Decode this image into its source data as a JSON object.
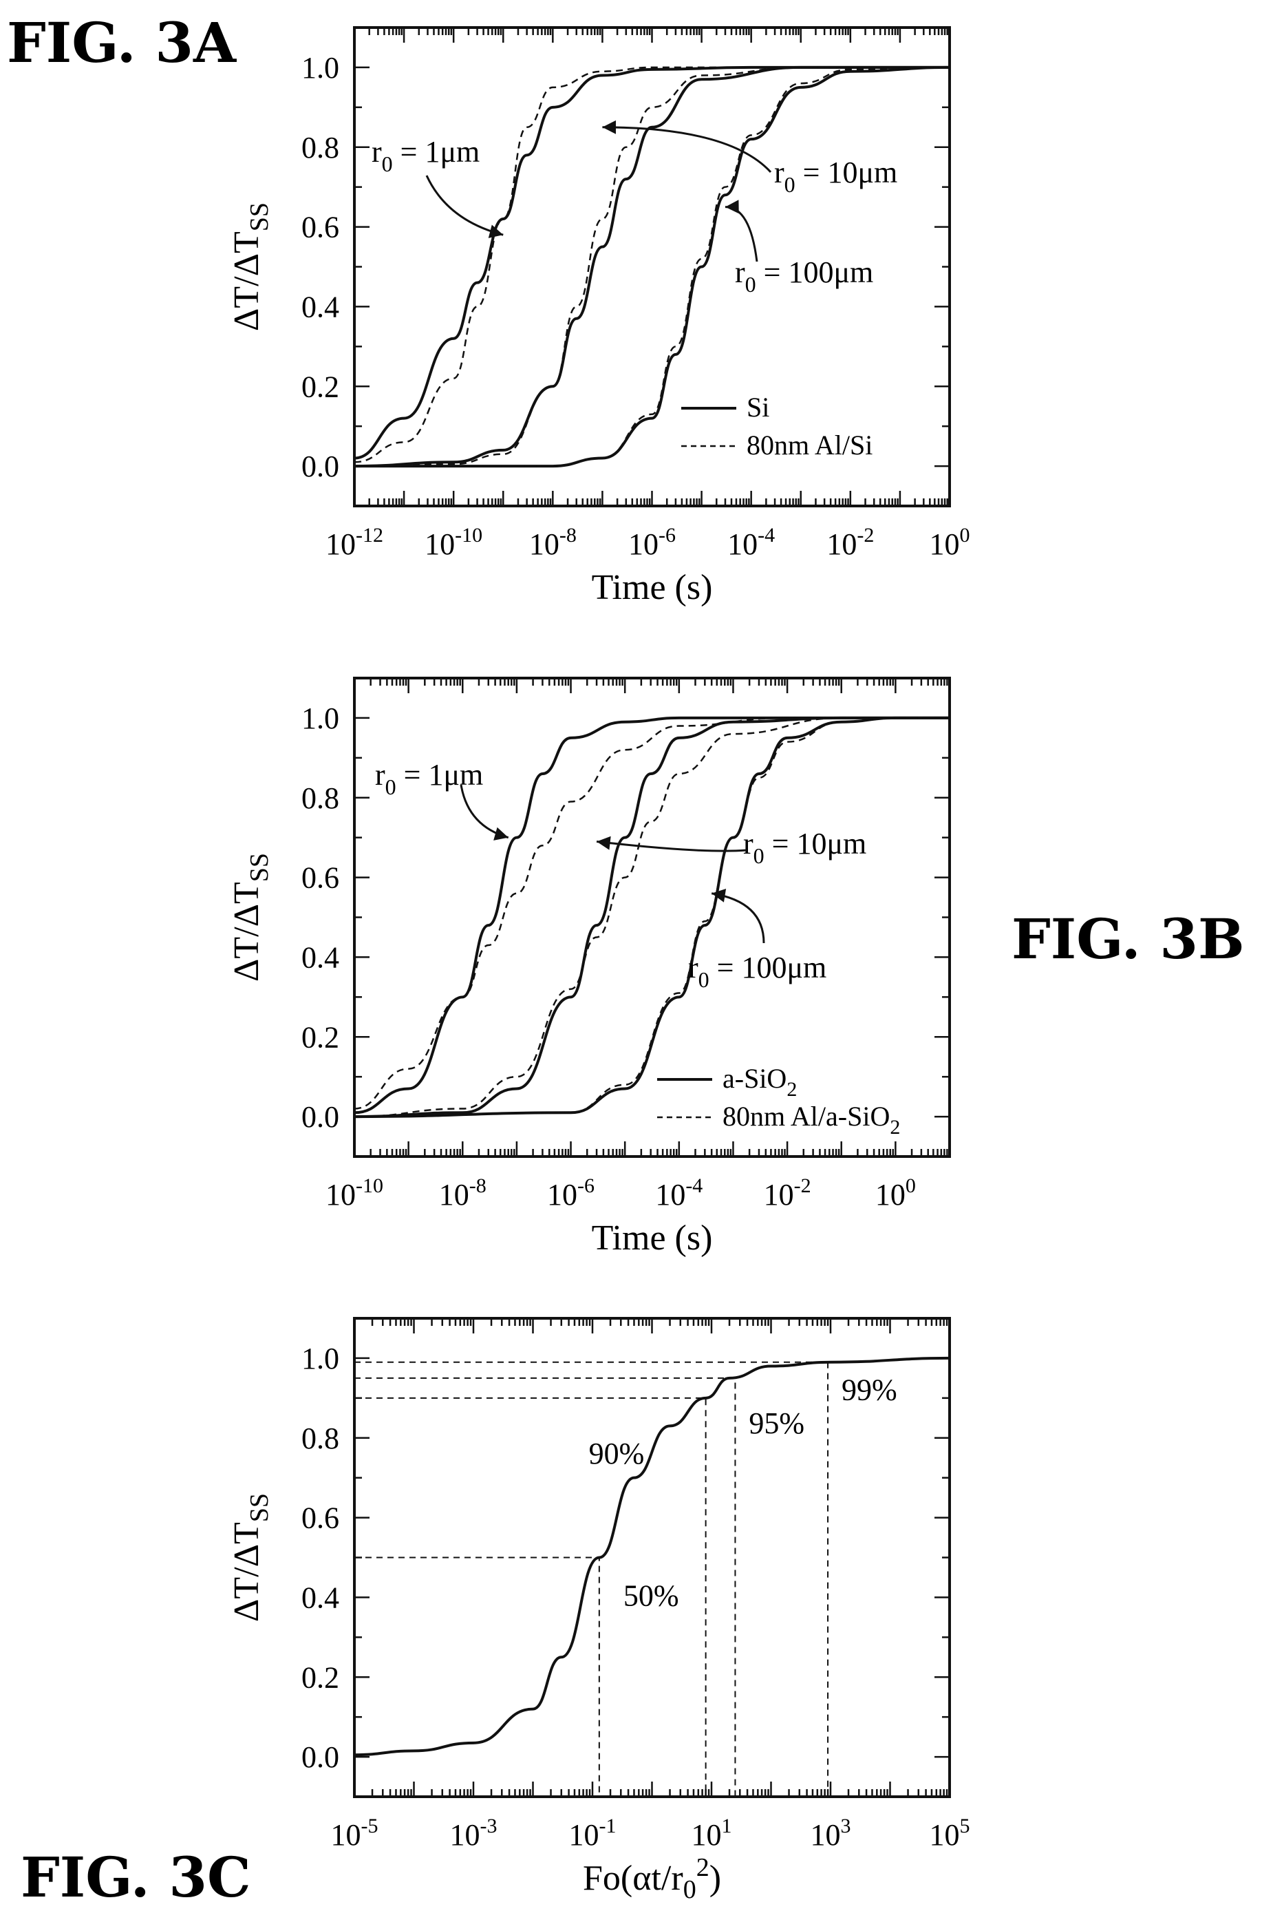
{
  "figures": {
    "3A": {
      "label": "FIG. 3A"
    },
    "3B": {
      "label": "FIG. 3B"
    },
    "3C": {
      "label": "FIG. 3C"
    }
  },
  "chart_data": [
    {
      "id": "3A",
      "type": "line",
      "title": "",
      "xlabel": "Time (s)",
      "ylabel_main": "ΔT/ΔT",
      "ylabel_sub": "SS",
      "xscale": "log",
      "xlim": [
        1e-12,
        1
      ],
      "ylim": [
        -0.1,
        1.1
      ],
      "grid": false,
      "legend_position": "bottom-right",
      "x_ticks": [
        {
          "value": 1e-12,
          "base": "10",
          "exp": "-12"
        },
        {
          "value": 1e-10,
          "base": "10",
          "exp": "-10"
        },
        {
          "value": 1e-08,
          "base": "10",
          "exp": "-8"
        },
        {
          "value": 1e-06,
          "base": "10",
          "exp": "-6"
        },
        {
          "value": 0.0001,
          "base": "10",
          "exp": "-4"
        },
        {
          "value": 0.01,
          "base": "10",
          "exp": "-2"
        },
        {
          "value": 1,
          "base": "10",
          "exp": "0"
        }
      ],
      "y_ticks": [
        "0.0",
        "0.2",
        "0.4",
        "0.6",
        "0.8",
        "1.0"
      ],
      "legend": [
        {
          "style": "solid",
          "label": "Si"
        },
        {
          "style": "dashed",
          "label": "80nm Al/Si"
        }
      ],
      "series": [
        {
          "style": "solid",
          "group": "r0 = 1μm",
          "x": [
            1e-12,
            1e-11,
            1e-10,
            3e-10,
            1e-09,
            3e-09,
            1e-08,
            1e-07,
            1e-06,
            0.0001,
            1
          ],
          "y": [
            0.02,
            0.12,
            0.32,
            0.46,
            0.62,
            0.78,
            0.9,
            0.98,
            0.995,
            1.0,
            1.0
          ]
        },
        {
          "style": "dashed",
          "group": "r0 = 1μm",
          "x": [
            1e-12,
            1e-11,
            1e-10,
            3e-10,
            1e-09,
            3e-09,
            1e-08,
            1e-07,
            1e-06,
            0.0001,
            1
          ],
          "y": [
            0.01,
            0.06,
            0.22,
            0.4,
            0.62,
            0.85,
            0.95,
            0.99,
            1.0,
            1.0,
            1.0
          ]
        },
        {
          "style": "solid",
          "group": "r0 = 10μm",
          "x": [
            1e-12,
            1e-10,
            1e-09,
            1e-08,
            3e-08,
            1e-07,
            3e-07,
            1e-06,
            1e-05,
            0.001,
            1
          ],
          "y": [
            0.0,
            0.01,
            0.04,
            0.2,
            0.37,
            0.55,
            0.72,
            0.85,
            0.97,
            1.0,
            1.0
          ]
        },
        {
          "style": "dashed",
          "group": "r0 = 10μm",
          "x": [
            1e-12,
            1e-10,
            1e-09,
            1e-08,
            3e-08,
            1e-07,
            3e-07,
            1e-06,
            1e-05,
            0.001,
            1
          ],
          "y": [
            0.0,
            0.005,
            0.03,
            0.2,
            0.4,
            0.62,
            0.8,
            0.9,
            0.98,
            1.0,
            1.0
          ]
        },
        {
          "style": "solid",
          "group": "r0 = 100μm",
          "x": [
            1e-12,
            1e-08,
            1e-07,
            1e-06,
            3e-06,
            1e-05,
            3e-05,
            0.0001,
            0.001,
            0.01,
            1
          ],
          "y": [
            0.0,
            0.0,
            0.02,
            0.12,
            0.28,
            0.5,
            0.68,
            0.82,
            0.95,
            0.99,
            1.0
          ]
        },
        {
          "style": "dashed",
          "group": "r0 = 100μm",
          "x": [
            1e-12,
            1e-08,
            1e-07,
            1e-06,
            3e-06,
            1e-05,
            3e-05,
            0.0001,
            0.001,
            0.01,
            1
          ],
          "y": [
            0.0,
            0.0,
            0.02,
            0.13,
            0.3,
            0.52,
            0.7,
            0.83,
            0.96,
            0.995,
            1.0
          ]
        }
      ],
      "annotations": [
        {
          "main": "r",
          "sub": "0",
          "rest": " = 1μm",
          "point_x": 1e-09,
          "point_y": 0.58
        },
        {
          "main": "r",
          "sub": "0",
          "rest": " = 10μm",
          "point_x": 1e-07,
          "point_y": 0.85
        },
        {
          "main": "r",
          "sub": "0",
          "rest": " = 100μm",
          "point_x": 3e-05,
          "point_y": 0.65
        }
      ]
    },
    {
      "id": "3B",
      "type": "line",
      "title": "",
      "xlabel": "Time (s)",
      "ylabel_main": "ΔT/ΔT",
      "ylabel_sub": "SS",
      "xscale": "log",
      "xlim": [
        1e-10,
        10
      ],
      "ylim": [
        -0.1,
        1.1
      ],
      "grid": false,
      "legend_position": "bottom-right",
      "x_ticks": [
        {
          "value": 1e-10,
          "base": "10",
          "exp": "-10"
        },
        {
          "value": 1e-08,
          "base": "10",
          "exp": "-8"
        },
        {
          "value": 1e-06,
          "base": "10",
          "exp": "-6"
        },
        {
          "value": 0.0001,
          "base": "10",
          "exp": "-4"
        },
        {
          "value": 0.01,
          "base": "10",
          "exp": "-2"
        },
        {
          "value": 1,
          "base": "10",
          "exp": "0"
        }
      ],
      "y_ticks": [
        "0.0",
        "0.2",
        "0.4",
        "0.6",
        "0.8",
        "1.0"
      ],
      "legend": [
        {
          "style": "solid",
          "label_main": "a-SiO",
          "label_sub": "2"
        },
        {
          "style": "dashed",
          "label_main": "80nm Al/a-SiO",
          "label_sub": "2"
        }
      ],
      "series": [
        {
          "style": "solid",
          "group": "r0 = 1μm",
          "x": [
            1e-10,
            1e-09,
            1e-08,
            3e-08,
            1e-07,
            3e-07,
            1e-06,
            1e-05,
            0.0001,
            0.01,
            10
          ],
          "y": [
            0.01,
            0.07,
            0.3,
            0.48,
            0.7,
            0.86,
            0.95,
            0.99,
            1.0,
            1.0,
            1.0
          ]
        },
        {
          "style": "dashed",
          "group": "r0 = 1μm",
          "x": [
            1e-10,
            1e-09,
            1e-08,
            3e-08,
            1e-07,
            3e-07,
            1e-06,
            1e-05,
            0.0001,
            0.01,
            10
          ],
          "y": [
            0.02,
            0.12,
            0.3,
            0.43,
            0.56,
            0.68,
            0.79,
            0.92,
            0.98,
            1.0,
            1.0
          ]
        },
        {
          "style": "solid",
          "group": "r0 = 10μm",
          "x": [
            1e-10,
            1e-08,
            1e-07,
            1e-06,
            3e-06,
            1e-05,
            3e-05,
            0.0001,
            0.001,
            0.1,
            10
          ],
          "y": [
            0.0,
            0.01,
            0.07,
            0.3,
            0.48,
            0.7,
            0.86,
            0.95,
            0.99,
            1.0,
            1.0
          ]
        },
        {
          "style": "dashed",
          "group": "r0 = 10μm",
          "x": [
            1e-10,
            1e-08,
            1e-07,
            1e-06,
            3e-06,
            1e-05,
            3e-05,
            0.0001,
            0.001,
            0.1,
            10
          ],
          "y": [
            0.0,
            0.02,
            0.1,
            0.32,
            0.45,
            0.6,
            0.74,
            0.86,
            0.96,
            1.0,
            1.0
          ]
        },
        {
          "style": "solid",
          "group": "r0 = 100μm",
          "x": [
            1e-10,
            1e-06,
            1e-05,
            0.0001,
            0.0003,
            0.001,
            0.003,
            0.01,
            0.1,
            1,
            10
          ],
          "y": [
            0.0,
            0.01,
            0.07,
            0.3,
            0.48,
            0.7,
            0.86,
            0.95,
            0.99,
            1.0,
            1.0
          ]
        },
        {
          "style": "dashed",
          "group": "r0 = 100μm",
          "x": [
            1e-10,
            1e-06,
            1e-05,
            0.0001,
            0.0003,
            0.001,
            0.003,
            0.01,
            0.1,
            1,
            10
          ],
          "y": [
            0.0,
            0.01,
            0.08,
            0.31,
            0.49,
            0.7,
            0.85,
            0.94,
            0.99,
            1.0,
            1.0
          ]
        }
      ],
      "annotations": [
        {
          "main": "r",
          "sub": "0",
          "rest": " = 1μm",
          "point_x": 7e-08,
          "point_y": 0.7
        },
        {
          "main": "r",
          "sub": "0",
          "rest": " = 10μm",
          "point_x": 3e-06,
          "point_y": 0.69
        },
        {
          "main": "r",
          "sub": "0",
          "rest": " = 100μm",
          "point_x": 0.0004,
          "point_y": 0.56
        }
      ]
    },
    {
      "id": "3C",
      "type": "line",
      "title": "",
      "xlabel_main": "Fo(αt/r",
      "xlabel_sub": "0",
      "xlabel_sup": "2",
      "xlabel_end": ")",
      "ylabel_main": "ΔT/ΔT",
      "ylabel_sub": "SS",
      "xscale": "log",
      "xlim": [
        1e-05,
        100000.0
      ],
      "ylim": [
        -0.1,
        1.1
      ],
      "grid": false,
      "x_ticks": [
        {
          "value": 1e-05,
          "base": "10",
          "exp": "-5"
        },
        {
          "value": 0.001,
          "base": "10",
          "exp": "-3"
        },
        {
          "value": 0.1,
          "base": "10",
          "exp": "-1"
        },
        {
          "value": 10,
          "base": "10",
          "exp": "1"
        },
        {
          "value": 1000,
          "base": "10",
          "exp": "3"
        },
        {
          "value": 100000,
          "base": "10",
          "exp": "5"
        }
      ],
      "y_ticks": [
        "0.0",
        "0.2",
        "0.4",
        "0.6",
        "0.8",
        "1.0"
      ],
      "series": [
        {
          "style": "solid",
          "x": [
            1e-05,
            0.0001,
            0.001,
            0.01,
            0.03,
            0.13,
            0.5,
            2,
            8,
            20,
            100,
            1000,
            100000.0
          ],
          "y": [
            0.005,
            0.015,
            0.035,
            0.12,
            0.25,
            0.5,
            0.7,
            0.83,
            0.9,
            0.95,
            0.98,
            0.99,
            1.0
          ]
        }
      ],
      "reference_lines": [
        {
          "x": 0.13,
          "y": 0.5,
          "label": "50%"
        },
        {
          "x": 8,
          "y": 0.9,
          "label": "90%"
        },
        {
          "x": 25,
          "y": 0.95,
          "label": "95%"
        },
        {
          "x": 900,
          "y": 0.99,
          "label": "99%"
        }
      ]
    }
  ]
}
